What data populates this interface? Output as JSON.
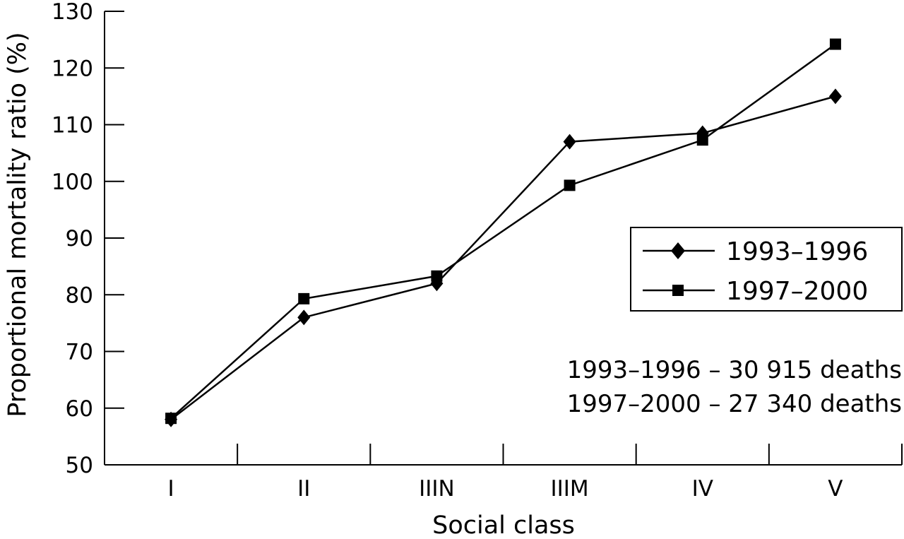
{
  "chart_data": {
    "type": "line",
    "title": "",
    "xlabel": "Social class",
    "ylabel": "Proportional mortality ratio (%)",
    "categories": [
      "I",
      "II",
      "IIIN",
      "IIIM",
      "IV",
      "V"
    ],
    "ylim": [
      50,
      130
    ],
    "yticks": [
      "50",
      "60",
      "70",
      "80",
      "90",
      "100",
      "110",
      "120",
      "130"
    ],
    "grid": false,
    "legend_position": "right",
    "series": [
      {
        "name": "1993–1996",
        "marker": "diamond",
        "values": [
          58,
          76,
          82,
          107,
          108.5,
          115
        ]
      },
      {
        "name": "1997–2000",
        "marker": "square",
        "values": [
          58.2,
          79.3,
          83.3,
          99.3,
          107.3,
          124.2
        ]
      }
    ],
    "annotations": [
      "1993–1996 – 30 915 deaths",
      "1997–2000 – 27 340 deaths"
    ]
  }
}
